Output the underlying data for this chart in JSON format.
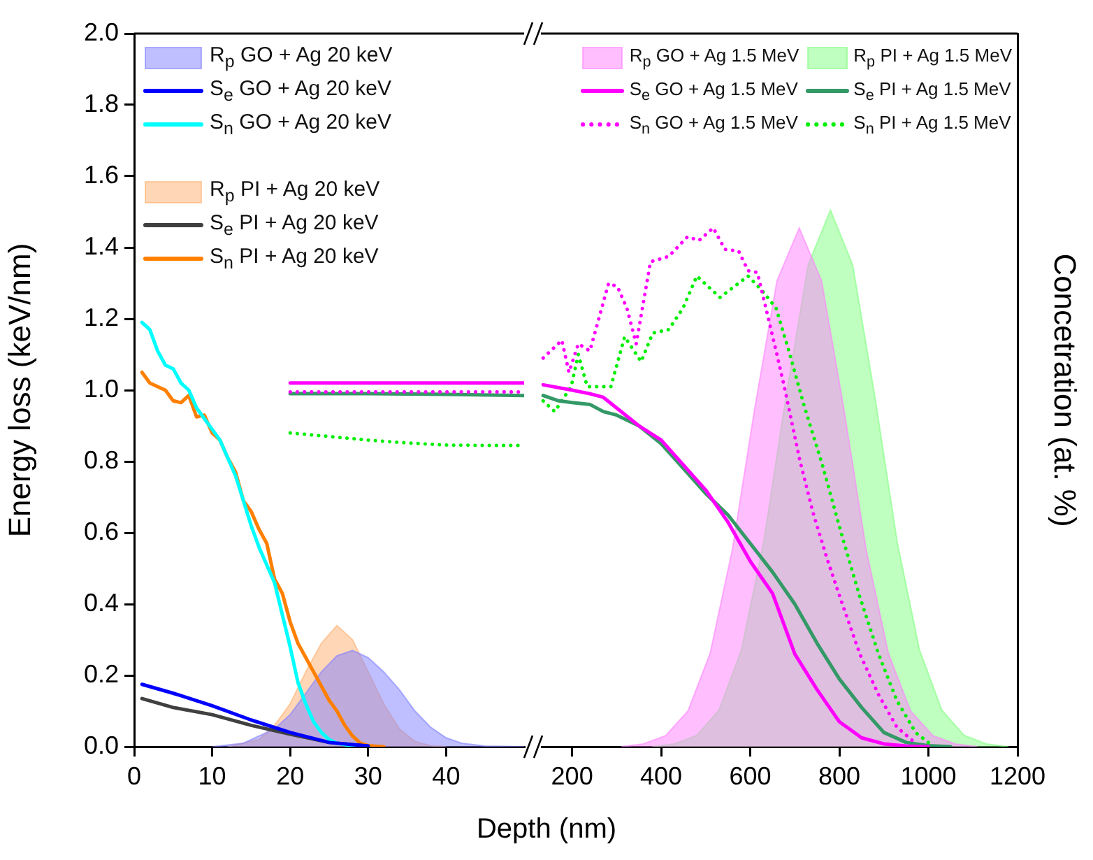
{
  "chart_data": [
    {
      "type": "line",
      "xlabel": "Depth (nm)",
      "ylabel": "Energy loss (keV/nm)",
      "xlim": [
        0,
        50
      ],
      "xticks": [
        0,
        10,
        20,
        30,
        40
      ],
      "ylim": [
        0,
        2
      ],
      "yticks": [
        {
          "value": 0,
          "label": "0.0"
        },
        {
          "value": 0.2,
          "label": "0.2"
        },
        {
          "value": 0.4,
          "label": "0.4"
        },
        {
          "value": 0.6,
          "label": "0.6"
        },
        {
          "value": 0.8,
          "label": "0.8"
        },
        {
          "value": 1,
          "label": "1.0"
        },
        {
          "value": 1.2,
          "label": "1.2"
        },
        {
          "value": 1.4,
          "label": "1.4"
        },
        {
          "value": 1.6,
          "label": "1.6"
        },
        {
          "value": 1.8,
          "label": "1.8"
        },
        {
          "value": 2,
          "label": "2.0"
        }
      ],
      "legend": "top left",
      "series": [
        {
          "type": "area",
          "name": "R$_{p}$ GO + Ag 20 keV",
          "color": "#8080ff",
          "x": [
            10,
            14,
            18,
            20,
            22,
            24,
            26,
            28,
            30,
            32,
            34,
            36,
            38,
            40,
            42,
            45,
            50
          ],
          "values": [
            0,
            0.01,
            0.05,
            0.09,
            0.15,
            0.21,
            0.255,
            0.27,
            0.25,
            0.21,
            0.16,
            0.1,
            0.055,
            0.025,
            0.01,
            0.002,
            0
          ]
        },
        {
          "type": "line",
          "name": "S$_{e}$ GO + Ag 20 keV",
          "color": "#0000ff",
          "line_style": "solid",
          "x": [
            1,
            5,
            10,
            15,
            20,
            25,
            30
          ],
          "values": [
            0.175,
            0.15,
            0.115,
            0.075,
            0.04,
            0.012,
            0.002
          ]
        },
        {
          "type": "line",
          "name": "S$_{n}$ GO + Ag 20 keV",
          "color": "#00ffff",
          "line_style": "solid",
          "x": [
            1,
            2,
            3,
            4,
            5,
            6,
            7,
            8,
            9,
            10,
            11,
            12,
            13,
            14,
            15,
            16,
            17,
            18,
            19,
            20,
            21,
            22,
            23,
            24,
            25,
            26,
            28,
            30
          ],
          "values": [
            1.19,
            1.17,
            1.11,
            1.07,
            1.06,
            1.02,
            1.0,
            0.95,
            0.92,
            0.89,
            0.86,
            0.81,
            0.76,
            0.69,
            0.62,
            0.56,
            0.51,
            0.46,
            0.37,
            0.28,
            0.18,
            0.12,
            0.07,
            0.04,
            0.02,
            0.01,
            0.002,
            0
          ]
        },
        {
          "type": "area",
          "name": "R$_{p}$ PI + Ag 20 keV",
          "color": "#ffb070",
          "x": [
            12,
            16,
            18,
            20,
            22,
            24,
            26,
            28,
            30,
            32,
            34,
            36,
            38,
            40
          ],
          "values": [
            0,
            0.02,
            0.06,
            0.12,
            0.21,
            0.29,
            0.34,
            0.3,
            0.21,
            0.12,
            0.05,
            0.015,
            0.003,
            0
          ]
        },
        {
          "type": "line",
          "name": "S$_{e}$ PI + Ag 20 keV",
          "color": "#404040",
          "line_style": "solid",
          "x": [
            1,
            5,
            10,
            15,
            20,
            25,
            30
          ],
          "values": [
            0.135,
            0.11,
            0.09,
            0.06,
            0.035,
            0.012,
            0.002
          ]
        },
        {
          "type": "line",
          "name": "S$_{n}$ PI + Ag 20 keV",
          "color": "#ff7f00",
          "line_style": "solid",
          "x": [
            1,
            2,
            3,
            4,
            5,
            6,
            7,
            8,
            9,
            10,
            11,
            12,
            13,
            14,
            15,
            16,
            17,
            18,
            19,
            20,
            21,
            22,
            23,
            24,
            25,
            26,
            27,
            28,
            29,
            30,
            32
          ],
          "values": [
            1.05,
            1.02,
            1.01,
            1.0,
            0.97,
            0.965,
            0.985,
            0.925,
            0.93,
            0.88,
            0.86,
            0.81,
            0.77,
            0.69,
            0.66,
            0.61,
            0.57,
            0.47,
            0.43,
            0.35,
            0.29,
            0.25,
            0.21,
            0.17,
            0.13,
            0.1,
            0.06,
            0.03,
            0.01,
            0.003,
            0
          ]
        },
        {
          "type": "line",
          "color": "#ff00ff",
          "line_style": "solid",
          "x": [
            20,
            30,
            40,
            50
          ],
          "values": [
            1.02,
            1.02,
            1.02,
            1.02
          ]
        },
        {
          "type": "line",
          "color": "#ff00ff",
          "line_style": "dotted",
          "x": [
            20,
            30,
            40,
            50
          ],
          "values": [
            0.995,
            0.995,
            0.995,
            0.995
          ]
        },
        {
          "type": "line",
          "color": "#339966",
          "line_style": "solid",
          "x": [
            20,
            30,
            40,
            50
          ],
          "values": [
            0.99,
            0.99,
            0.988,
            0.985
          ]
        },
        {
          "type": "line",
          "color": "#00ee00",
          "line_style": "dotted",
          "x": [
            20,
            25,
            30,
            35,
            40,
            45,
            50
          ],
          "values": [
            0.88,
            0.87,
            0.86,
            0.852,
            0.846,
            0.845,
            0.845
          ]
        }
      ]
    },
    {
      "type": "line",
      "y2label": "Concetration (at. %)",
      "xlim": [
        130,
        1200
      ],
      "xticks": [
        200,
        400,
        600,
        800,
        1000,
        1200
      ],
      "ylim": [
        0,
        2
      ],
      "tick_labels": "x",
      "legend": "top right",
      "series": [
        {
          "type": "area",
          "name": "R$_{p}$ GO + Ag 1.5 MeV",
          "color": "#ff80ff",
          "x": [
            310,
            360,
            410,
            460,
            510,
            560,
            610,
            660,
            710,
            760,
            810,
            860,
            910,
            960,
            1010,
            1060,
            1110
          ],
          "values": [
            0,
            0.008,
            0.031,
            0.1,
            0.262,
            0.554,
            0.948,
            1.307,
            1.455,
            1.307,
            0.948,
            0.554,
            0.262,
            0.1,
            0.031,
            0.008,
            0
          ]
        },
        {
          "type": "line",
          "name": "S$_{e}$ GO + Ag 1.5 MeV",
          "color": "#ff00ff",
          "line_style": "solid",
          "x": [
            135,
            200,
            240,
            270,
            300,
            350,
            400,
            450,
            500,
            550,
            600,
            650,
            700,
            750,
            800,
            850,
            900,
            950,
            1000
          ],
          "values": [
            1.015,
            1.0,
            0.99,
            0.98,
            0.95,
            0.9,
            0.86,
            0.79,
            0.72,
            0.63,
            0.52,
            0.43,
            0.26,
            0.16,
            0.07,
            0.025,
            0.008,
            0.002,
            0
          ]
        },
        {
          "type": "line",
          "name": "S$_{n}$ GO + Ag 1.5 MeV",
          "color": "#ff00ff",
          "line_style": "dotted",
          "x": [
            135,
            177,
            193,
            214,
            240,
            282,
            302,
            323,
            344,
            376,
            417,
            459,
            485,
            517,
            543,
            574,
            595,
            616,
            637,
            658,
            679,
            710,
            741,
            773,
            804,
            846,
            888,
            929,
            971
          ],
          "values": [
            1.09,
            1.14,
            1.05,
            1.13,
            1.11,
            1.3,
            1.29,
            1.23,
            1.13,
            1.36,
            1.375,
            1.43,
            1.42,
            1.455,
            1.395,
            1.39,
            1.335,
            1.33,
            1.22,
            1.11,
            0.995,
            0.81,
            0.656,
            0.525,
            0.41,
            0.26,
            0.146,
            0.055,
            0.01
          ]
        },
        {
          "type": "area",
          "name": "R$_{p}$ PI + Ag 1.5 MeV",
          "color": "#80ff80",
          "x": [
            380,
            430,
            480,
            530,
            580,
            630,
            680,
            730,
            780,
            830,
            880,
            930,
            980,
            1030,
            1080,
            1130,
            1180
          ],
          "values": [
            0,
            0.008,
            0.032,
            0.103,
            0.271,
            0.573,
            0.98,
            1.351,
            1.505,
            1.351,
            0.98,
            0.573,
            0.271,
            0.103,
            0.032,
            0.008,
            0
          ]
        },
        {
          "type": "line",
          "name": "S$_{e}$ PI + Ag 1.5 MeV",
          "color": "#339966",
          "line_style": "solid",
          "x": [
            135,
            170,
            200,
            240,
            270,
            300,
            350,
            400,
            450,
            500,
            550,
            600,
            650,
            700,
            750,
            800,
            850,
            900,
            950,
            1000,
            1050
          ],
          "values": [
            0.985,
            0.97,
            0.965,
            0.96,
            0.94,
            0.93,
            0.9,
            0.85,
            0.78,
            0.71,
            0.65,
            0.57,
            0.49,
            0.4,
            0.29,
            0.19,
            0.11,
            0.04,
            0.012,
            0.003,
            0
          ]
        },
        {
          "type": "line",
          "name": "S$_{n}$ PI + Ag 1.5 MeV",
          "color": "#00ee00",
          "line_style": "dotted",
          "x": [
            135,
            161,
            198,
            214,
            234,
            287,
            318,
            355,
            381,
            417,
            449,
            480,
            532,
            574,
            595,
            626,
            658,
            689,
            720,
            762,
            804,
            846,
            888,
            929,
            971,
            1002
          ],
          "values": [
            0.97,
            0.94,
            1.01,
            1.1,
            1.01,
            1.01,
            1.15,
            1.08,
            1.16,
            1.17,
            1.23,
            1.32,
            1.26,
            1.3,
            1.32,
            1.28,
            1.23,
            1.1,
            0.96,
            0.79,
            0.6,
            0.42,
            0.26,
            0.13,
            0.04,
            0.01
          ]
        }
      ]
    }
  ]
}
